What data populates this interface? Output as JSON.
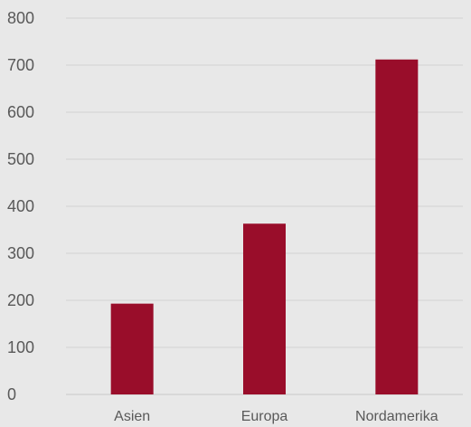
{
  "chart_data": {
    "type": "bar",
    "title": "",
    "xlabel": "",
    "ylabel": "",
    "categories": [
      "Asien",
      "Europa",
      "Nordamerika"
    ],
    "values": [
      193,
      363,
      712
    ],
    "ylim": [
      0,
      800
    ],
    "yticks": [
      0,
      100,
      200,
      300,
      400,
      500,
      600,
      700,
      800
    ],
    "grid": true,
    "legend": "none",
    "colors": {
      "bar": "#990d2a",
      "background": "#e8e8e8",
      "grid": "#d2d2d2",
      "text": "#595959"
    }
  }
}
